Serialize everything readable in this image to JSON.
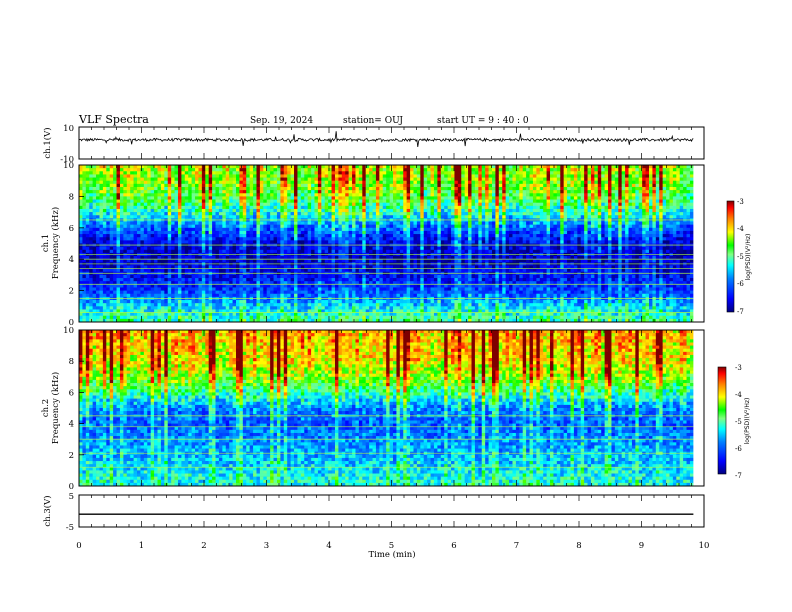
{
  "header": {
    "title": "VLF Spectra",
    "date": "Sep. 19, 2024",
    "station": "station= OUJ",
    "start_ut": "start UT =  9 : 40 : 0"
  },
  "axes": {
    "time_label": "Time (min)",
    "time_ticks": [
      "0",
      "1",
      "2",
      "3",
      "4",
      "5",
      "6",
      "7",
      "8",
      "9",
      "10"
    ],
    "ch1_wave_label": "ch.1(V)",
    "ch1_wave_ticks": [
      "10",
      "-10"
    ],
    "ch1_spec_label": "ch.1",
    "ch2_spec_label": "ch.2",
    "freq_label": "Frequency (kHz)",
    "freq_ticks": [
      "0",
      "2",
      "4",
      "6",
      "8",
      "10"
    ],
    "ch3_wave_label": "ch.3(V)",
    "ch3_wave_ticks": [
      "5",
      "-5"
    ]
  },
  "colorbar": {
    "label": "log(PSD)(V²/Hz)",
    "ticks": [
      "-3",
      "-4",
      "-5",
      "-6",
      "-7"
    ],
    "colors": [
      "#00007f",
      "#0000ff",
      "#0080ff",
      "#00ffff",
      "#80ff80",
      "#00ff00",
      "#ffff00",
      "#ff8000",
      "#ff0000",
      "#7f0000"
    ]
  },
  "chart_data": [
    {
      "type": "line",
      "name": "ch.1 waveform",
      "ylabel": "ch.1(V)",
      "xlabel": "Time (min)",
      "xlim": [
        0,
        10
      ],
      "ylim": [
        -10,
        10
      ],
      "data_extent_min": 9.83,
      "mean_level": 2,
      "noise_amplitude": 1.5
    },
    {
      "type": "heatmap",
      "name": "ch.1 spectrogram",
      "ylabel": "Frequency (kHz)",
      "xlim": [
        0,
        10
      ],
      "ylim": [
        0,
        10
      ],
      "z_label": "log(PSD)(V²/Hz)",
      "zlim": [
        -7,
        -3
      ],
      "profile_freq_khz": [
        0,
        1,
        2,
        3,
        4,
        5,
        6,
        7,
        8,
        9,
        10
      ],
      "profile_logpsd": [
        -5.0,
        -5.5,
        -6.2,
        -6.5,
        -6.8,
        -6.6,
        -6.0,
        -5.2,
        -4.7,
        -4.4,
        -4.3
      ],
      "line_freqs_khz": [
        0.6,
        1.5,
        2.4,
        3.1,
        3.4,
        3.7,
        4.0,
        4.3,
        4.9,
        6.5
      ]
    },
    {
      "type": "heatmap",
      "name": "ch.2 spectrogram",
      "ylabel": "Frequency (kHz)",
      "xlim": [
        0,
        10
      ],
      "ylim": [
        0,
        10
      ],
      "z_label": "log(PSD)(V²/Hz)",
      "zlim": [
        -7,
        -3
      ],
      "profile_freq_khz": [
        0,
        1,
        2,
        3,
        4,
        5,
        6,
        7,
        8,
        9,
        10
      ],
      "profile_logpsd": [
        -5.2,
        -5.4,
        -5.6,
        -5.8,
        -6.0,
        -5.8,
        -5.0,
        -4.4,
        -4.0,
        -3.9,
        -3.8
      ],
      "line_freqs_khz": [
        1.2,
        2.1,
        3.0,
        3.8,
        4.5
      ]
    },
    {
      "type": "line",
      "name": "ch.3 waveform",
      "ylabel": "ch.3(V)",
      "xlim": [
        0,
        10
      ],
      "ylim": [
        -5,
        5
      ],
      "data_extent_min": 9.83,
      "mean_level": -1,
      "noise_amplitude": 0
    }
  ]
}
